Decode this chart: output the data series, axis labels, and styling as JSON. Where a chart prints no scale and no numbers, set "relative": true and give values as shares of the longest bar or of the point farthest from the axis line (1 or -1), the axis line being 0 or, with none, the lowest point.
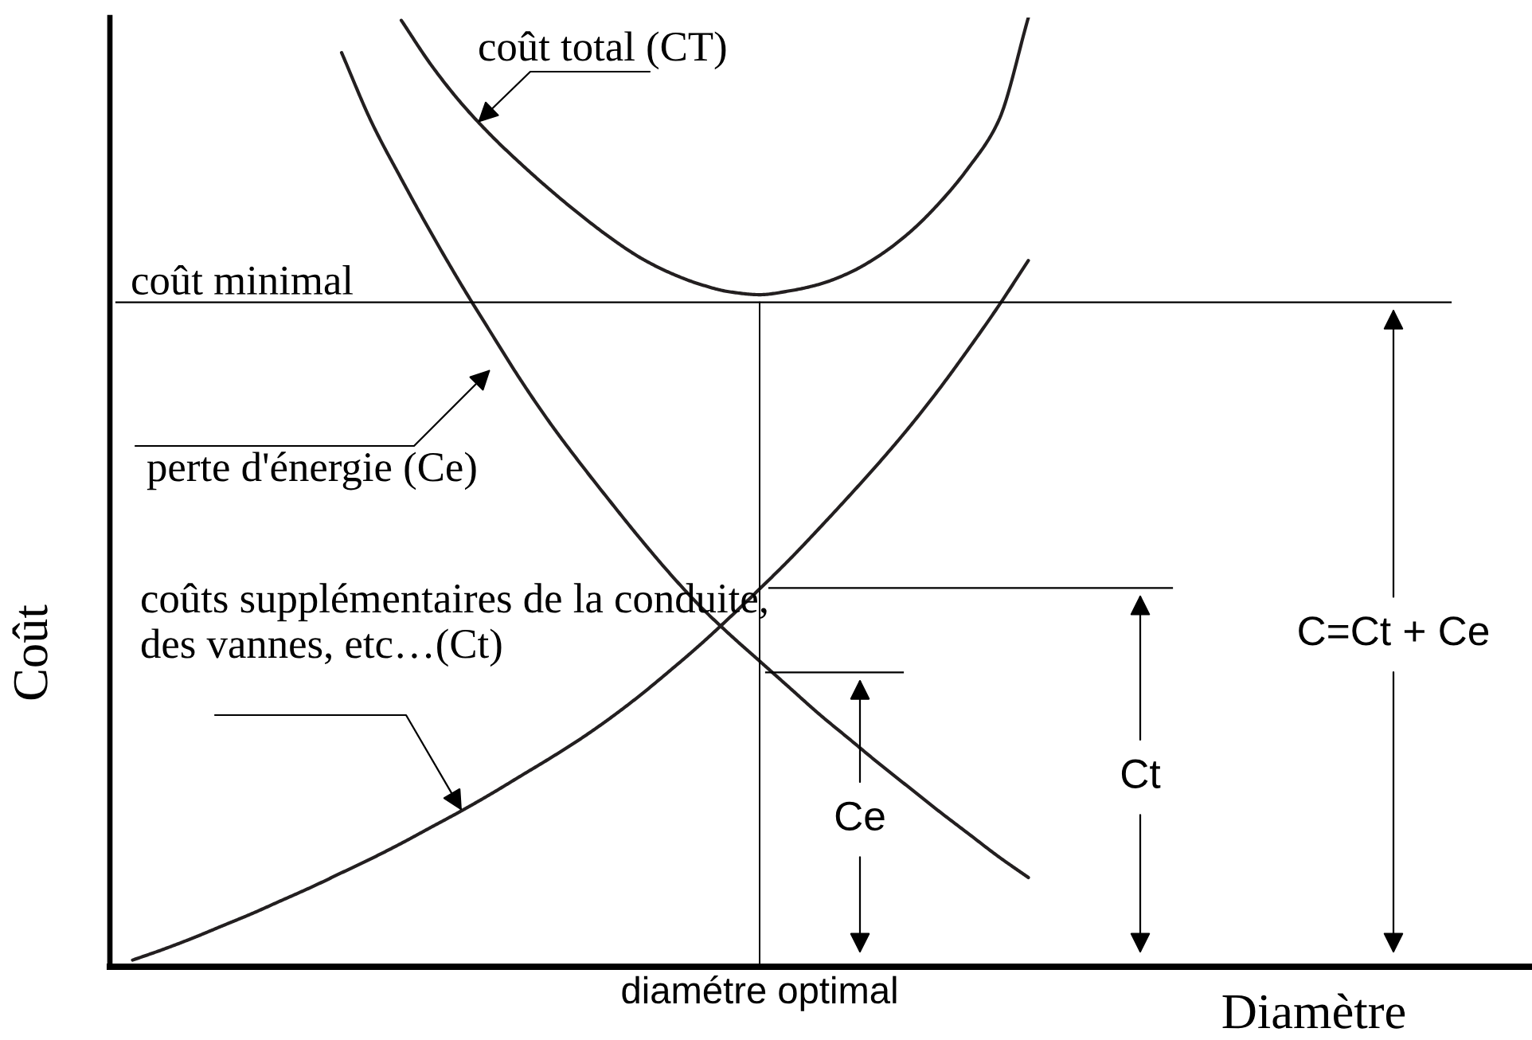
{
  "chart_data": {
    "type": "line",
    "relative": true,
    "xlabel": "Diamètre",
    "ylabel": "Coût",
    "categories": [
      null,
      null,
      null,
      null,
      null,
      null,
      null,
      null,
      null,
      null,
      null,
      null,
      null,
      null,
      null,
      null,
      null,
      null,
      null,
      null,
      null,
      null,
      null,
      null,
      null,
      null,
      null,
      null,
      null,
      null,
      null,
      null,
      null,
      null,
      null,
      null,
      null,
      null,
      null,
      null,
      null,
      null,
      null,
      null,
      null,
      null,
      null
    ],
    "series": [
      {
        "name": "coût total (CT)",
        "color": "#231f20",
        "values": [
          null,
          null,
          null,
          null,
          null,
          null,
          null,
          null,
          null,
          0.997,
          0.95,
          0.91,
          0.876,
          0.846,
          0.818,
          0.792,
          0.768,
          0.747,
          0.731,
          0.719,
          0.711,
          0.708,
          0.712,
          0.719,
          0.731,
          0.749,
          0.773,
          0.804,
          0.842,
          0.891,
          1.0,
          null,
          null,
          null,
          null,
          null,
          null,
          null,
          null,
          null,
          null,
          null,
          null,
          null,
          null,
          null,
          null
        ]
      },
      {
        "name": "perte d'énergie (Ce)",
        "color": "#231f20",
        "values": [
          null,
          null,
          null,
          null,
          null,
          null,
          null,
          0.963,
          0.89,
          0.83,
          0.773,
          0.719,
          0.668,
          0.618,
          0.572,
          0.53,
          0.49,
          0.451,
          0.414,
          0.38,
          0.35,
          0.322,
          0.294,
          0.266,
          0.24,
          0.214,
          0.189,
          0.164,
          0.14,
          0.116,
          0.094,
          null,
          null,
          null,
          null,
          null,
          null,
          null,
          null,
          null,
          null,
          null,
          null,
          null,
          null,
          null,
          null
        ]
      },
      {
        "name": "coûts supplémentaires de la conduite,\ndes vannes, etc…(Ct)",
        "color": "#231f20",
        "values": [
          0.007,
          0.018,
          0.03,
          0.043,
          0.056,
          0.07,
          0.084,
          0.099,
          0.114,
          0.13,
          0.147,
          0.164,
          0.182,
          0.201,
          0.22,
          0.24,
          0.262,
          0.286,
          0.312,
          0.339,
          0.368,
          0.398,
          0.429,
          0.462,
          0.496,
          0.531,
          0.568,
          0.608,
          0.651,
          0.696,
          0.744,
          null,
          null,
          null,
          null,
          null,
          null,
          null,
          null,
          null,
          null,
          null,
          null,
          null,
          null,
          null,
          null
        ]
      }
    ],
    "ref_lines": [
      {
        "axis": "y",
        "value": 0.7,
        "label": "coût minimal"
      },
      {
        "axis": "y",
        "value": 0.399
      },
      {
        "axis": "y",
        "value": 0.31
      }
    ],
    "annotations": [
      {
        "text": "Ce",
        "y": 0.31
      },
      {
        "text": "Ct",
        "y": 0.399
      },
      {
        "text": "C=Ct + Ce",
        "y": 0.7
      },
      "diamétre optimal"
    ]
  }
}
